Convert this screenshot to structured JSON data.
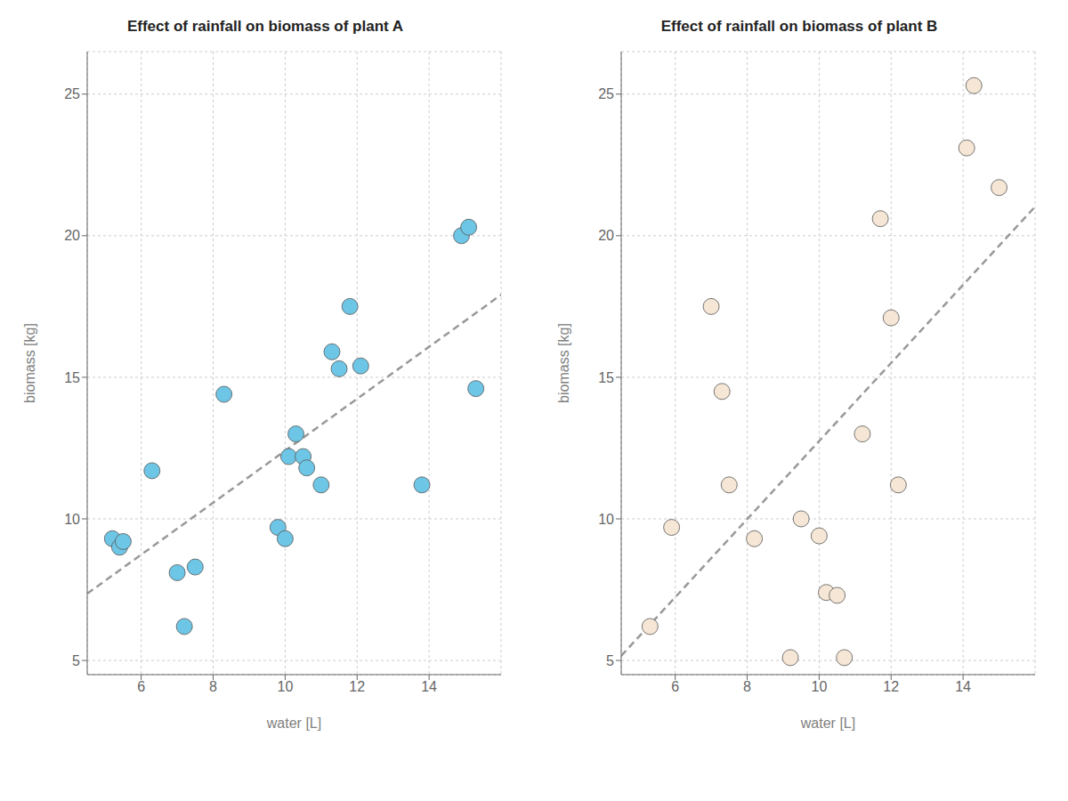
{
  "chart_data": [
    {
      "type": "scatter",
      "title": "Effect of rainfall on biomass of plant A",
      "x_label": "water [L]",
      "y_label": "biomass [kg]",
      "xlim": [
        4.5,
        16.0
      ],
      "ylim": [
        4.5,
        26.5
      ],
      "xticks": [
        6,
        8,
        10,
        12,
        14
      ],
      "yticks": [
        5,
        10,
        15,
        20,
        25
      ],
      "grid": true,
      "series": [
        {
          "type": "scatter",
          "color": "#6EC6E6",
          "x": [
            5.2,
            5.4,
            5.5,
            6.3,
            7.0,
            7.2,
            7.5,
            8.3,
            9.8,
            10.0,
            10.1,
            10.3,
            10.5,
            10.6,
            11.0,
            11.3,
            11.5,
            11.8,
            12.1,
            13.8,
            14.9,
            15.1,
            15.3
          ],
          "values": [
            9.3,
            9.0,
            9.2,
            11.7,
            8.1,
            6.2,
            8.3,
            14.4,
            9.7,
            9.3,
            12.2,
            13.0,
            12.2,
            11.8,
            11.2,
            15.9,
            15.3,
            17.5,
            15.4,
            11.2,
            20.0,
            20.3,
            14.6
          ]
        },
        {
          "type": "line",
          "color": "#999999",
          "line_style": "dashed",
          "x": [
            4.5,
            16.0
          ],
          "values": [
            7.36,
            17.911
          ]
        }
      ]
    },
    {
      "type": "scatter",
      "title": "Effect of rainfall on biomass of plant B",
      "x_label": "water [L]",
      "y_label": "biomass [kg]",
      "xlim": [
        4.5,
        16.0
      ],
      "ylim": [
        4.5,
        26.5
      ],
      "xticks": [
        6,
        8,
        10,
        12,
        14
      ],
      "yticks": [
        5,
        10,
        15,
        20,
        25
      ],
      "grid": true,
      "series": [
        {
          "type": "scatter",
          "color": "#F5E6D5",
          "x": [
            5.3,
            5.9,
            7.0,
            7.3,
            7.5,
            8.2,
            9.2,
            9.5,
            10.0,
            10.2,
            10.5,
            10.7,
            11.2,
            11.7,
            12.0,
            12.2,
            14.1,
            14.3,
            15.0
          ],
          "values": [
            6.2,
            9.7,
            17.5,
            14.5,
            11.2,
            9.3,
            5.1,
            10.0,
            9.4,
            7.4,
            7.3,
            5.1,
            13.0,
            20.6,
            17.1,
            11.2,
            23.1,
            25.3,
            21.7
          ]
        },
        {
          "type": "line",
          "color": "#999999",
          "line_style": "dashed",
          "x": [
            4.5,
            16.0
          ],
          "values": [
            5.163,
            21.023
          ]
        }
      ]
    }
  ]
}
